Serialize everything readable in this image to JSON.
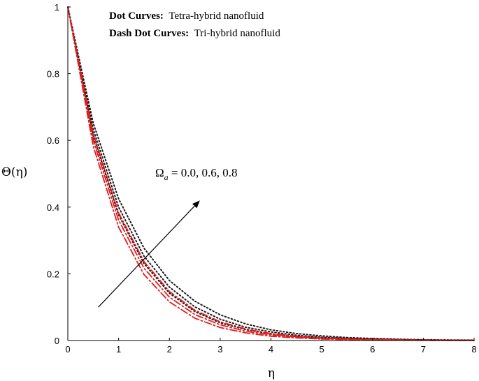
{
  "chart_data": {
    "type": "line",
    "xlabel": "η",
    "ylabel": "Θ(η)",
    "xlim": [
      0,
      8
    ],
    "ylim": [
      0,
      1
    ],
    "xticks": [
      "0",
      "1",
      "2",
      "3",
      "4",
      "5",
      "6",
      "7",
      "8"
    ],
    "yticks": [
      "0",
      "0.2",
      "0.4",
      "0.6",
      "0.8",
      "1"
    ],
    "grid": false,
    "legend": {
      "line1_bold": "Dot Curves:",
      "line1_text": "Tetra-hybrid nanofluid",
      "line2_bold": "Dash Dot Curves:",
      "line2_text": "Tri-hybrid nanofluid"
    },
    "annotation": {
      "symbol": "Ω",
      "subscript": "a",
      "values_text": " = 0.0, 0.6, 0.8",
      "arrow_from": [
        0.6,
        0.1
      ],
      "arrow_to": [
        2.6,
        0.42
      ]
    },
    "series": [
      {
        "style": "dotted",
        "color": "#1a1a1a",
        "x": [
          0,
          0.5,
          1,
          1.5,
          2,
          2.5,
          3,
          3.5,
          4,
          4.5,
          5,
          5.5,
          6,
          6.5,
          7,
          7.5,
          8
        ],
        "y": [
          1,
          0.652,
          0.425,
          0.277,
          0.18,
          0.118,
          0.077,
          0.05,
          0.032,
          0.021,
          0.014,
          0.009,
          0.006,
          0.004,
          0.0025,
          0.0016,
          0.001
        ]
      },
      {
        "style": "dotted",
        "color": "#1a1a1a",
        "x": [
          0,
          0.5,
          1,
          1.5,
          2,
          2.5,
          3,
          3.5,
          4,
          4.5,
          5,
          5.5,
          6,
          6.5,
          7,
          7.5,
          8
        ],
        "y": [
          1,
          0.633,
          0.4,
          0.253,
          0.16,
          0.101,
          0.064,
          0.04,
          0.026,
          0.016,
          0.01,
          0.006,
          0.004,
          0.003,
          0.0016,
          0.001,
          0.0007
        ]
      },
      {
        "style": "dotted",
        "color": "#1a1a1a",
        "x": [
          0,
          0.5,
          1,
          1.5,
          2,
          2.5,
          3,
          3.5,
          4,
          4.5,
          5,
          5.5,
          6,
          6.5,
          7,
          7.5,
          8
        ],
        "y": [
          1,
          0.614,
          0.377,
          0.231,
          0.142,
          0.087,
          0.053,
          0.033,
          0.02,
          0.012,
          0.008,
          0.005,
          0.003,
          0.002,
          0.001,
          0.0007,
          0.0004
        ]
      },
      {
        "style": "dashdot",
        "color": "#e41a1c",
        "x": [
          0,
          0.5,
          1,
          1.5,
          2,
          2.5,
          3,
          3.5,
          4,
          4.5,
          5,
          5.5,
          6,
          6.5,
          7,
          7.5,
          8
        ],
        "y": [
          1,
          0.619,
          0.383,
          0.237,
          0.147,
          0.091,
          0.056,
          0.035,
          0.021,
          0.013,
          0.008,
          0.005,
          0.003,
          0.002,
          0.0012,
          0.0008,
          0.0005
        ]
      },
      {
        "style": "dashdot",
        "color": "#e41a1c",
        "x": [
          0,
          0.5,
          1,
          1.5,
          2,
          2.5,
          3,
          3.5,
          4,
          4.5,
          5,
          5.5,
          6,
          6.5,
          7,
          7.5,
          8
        ],
        "y": [
          1,
          0.601,
          0.361,
          0.217,
          0.13,
          0.078,
          0.047,
          0.028,
          0.017,
          0.01,
          0.006,
          0.004,
          0.002,
          0.0013,
          0.0008,
          0.0005,
          0.0003
        ]
      },
      {
        "style": "dashdot",
        "color": "#e41a1c",
        "x": [
          0,
          0.5,
          1,
          1.5,
          2,
          2.5,
          3,
          3.5,
          4,
          4.5,
          5,
          5.5,
          6,
          6.5,
          7,
          7.5,
          8
        ],
        "y": [
          1,
          0.583,
          0.34,
          0.198,
          0.116,
          0.067,
          0.039,
          0.023,
          0.013,
          0.008,
          0.0046,
          0.0027,
          0.0016,
          0.0009,
          0.0005,
          0.0003,
          0.0002
        ]
      }
    ]
  }
}
